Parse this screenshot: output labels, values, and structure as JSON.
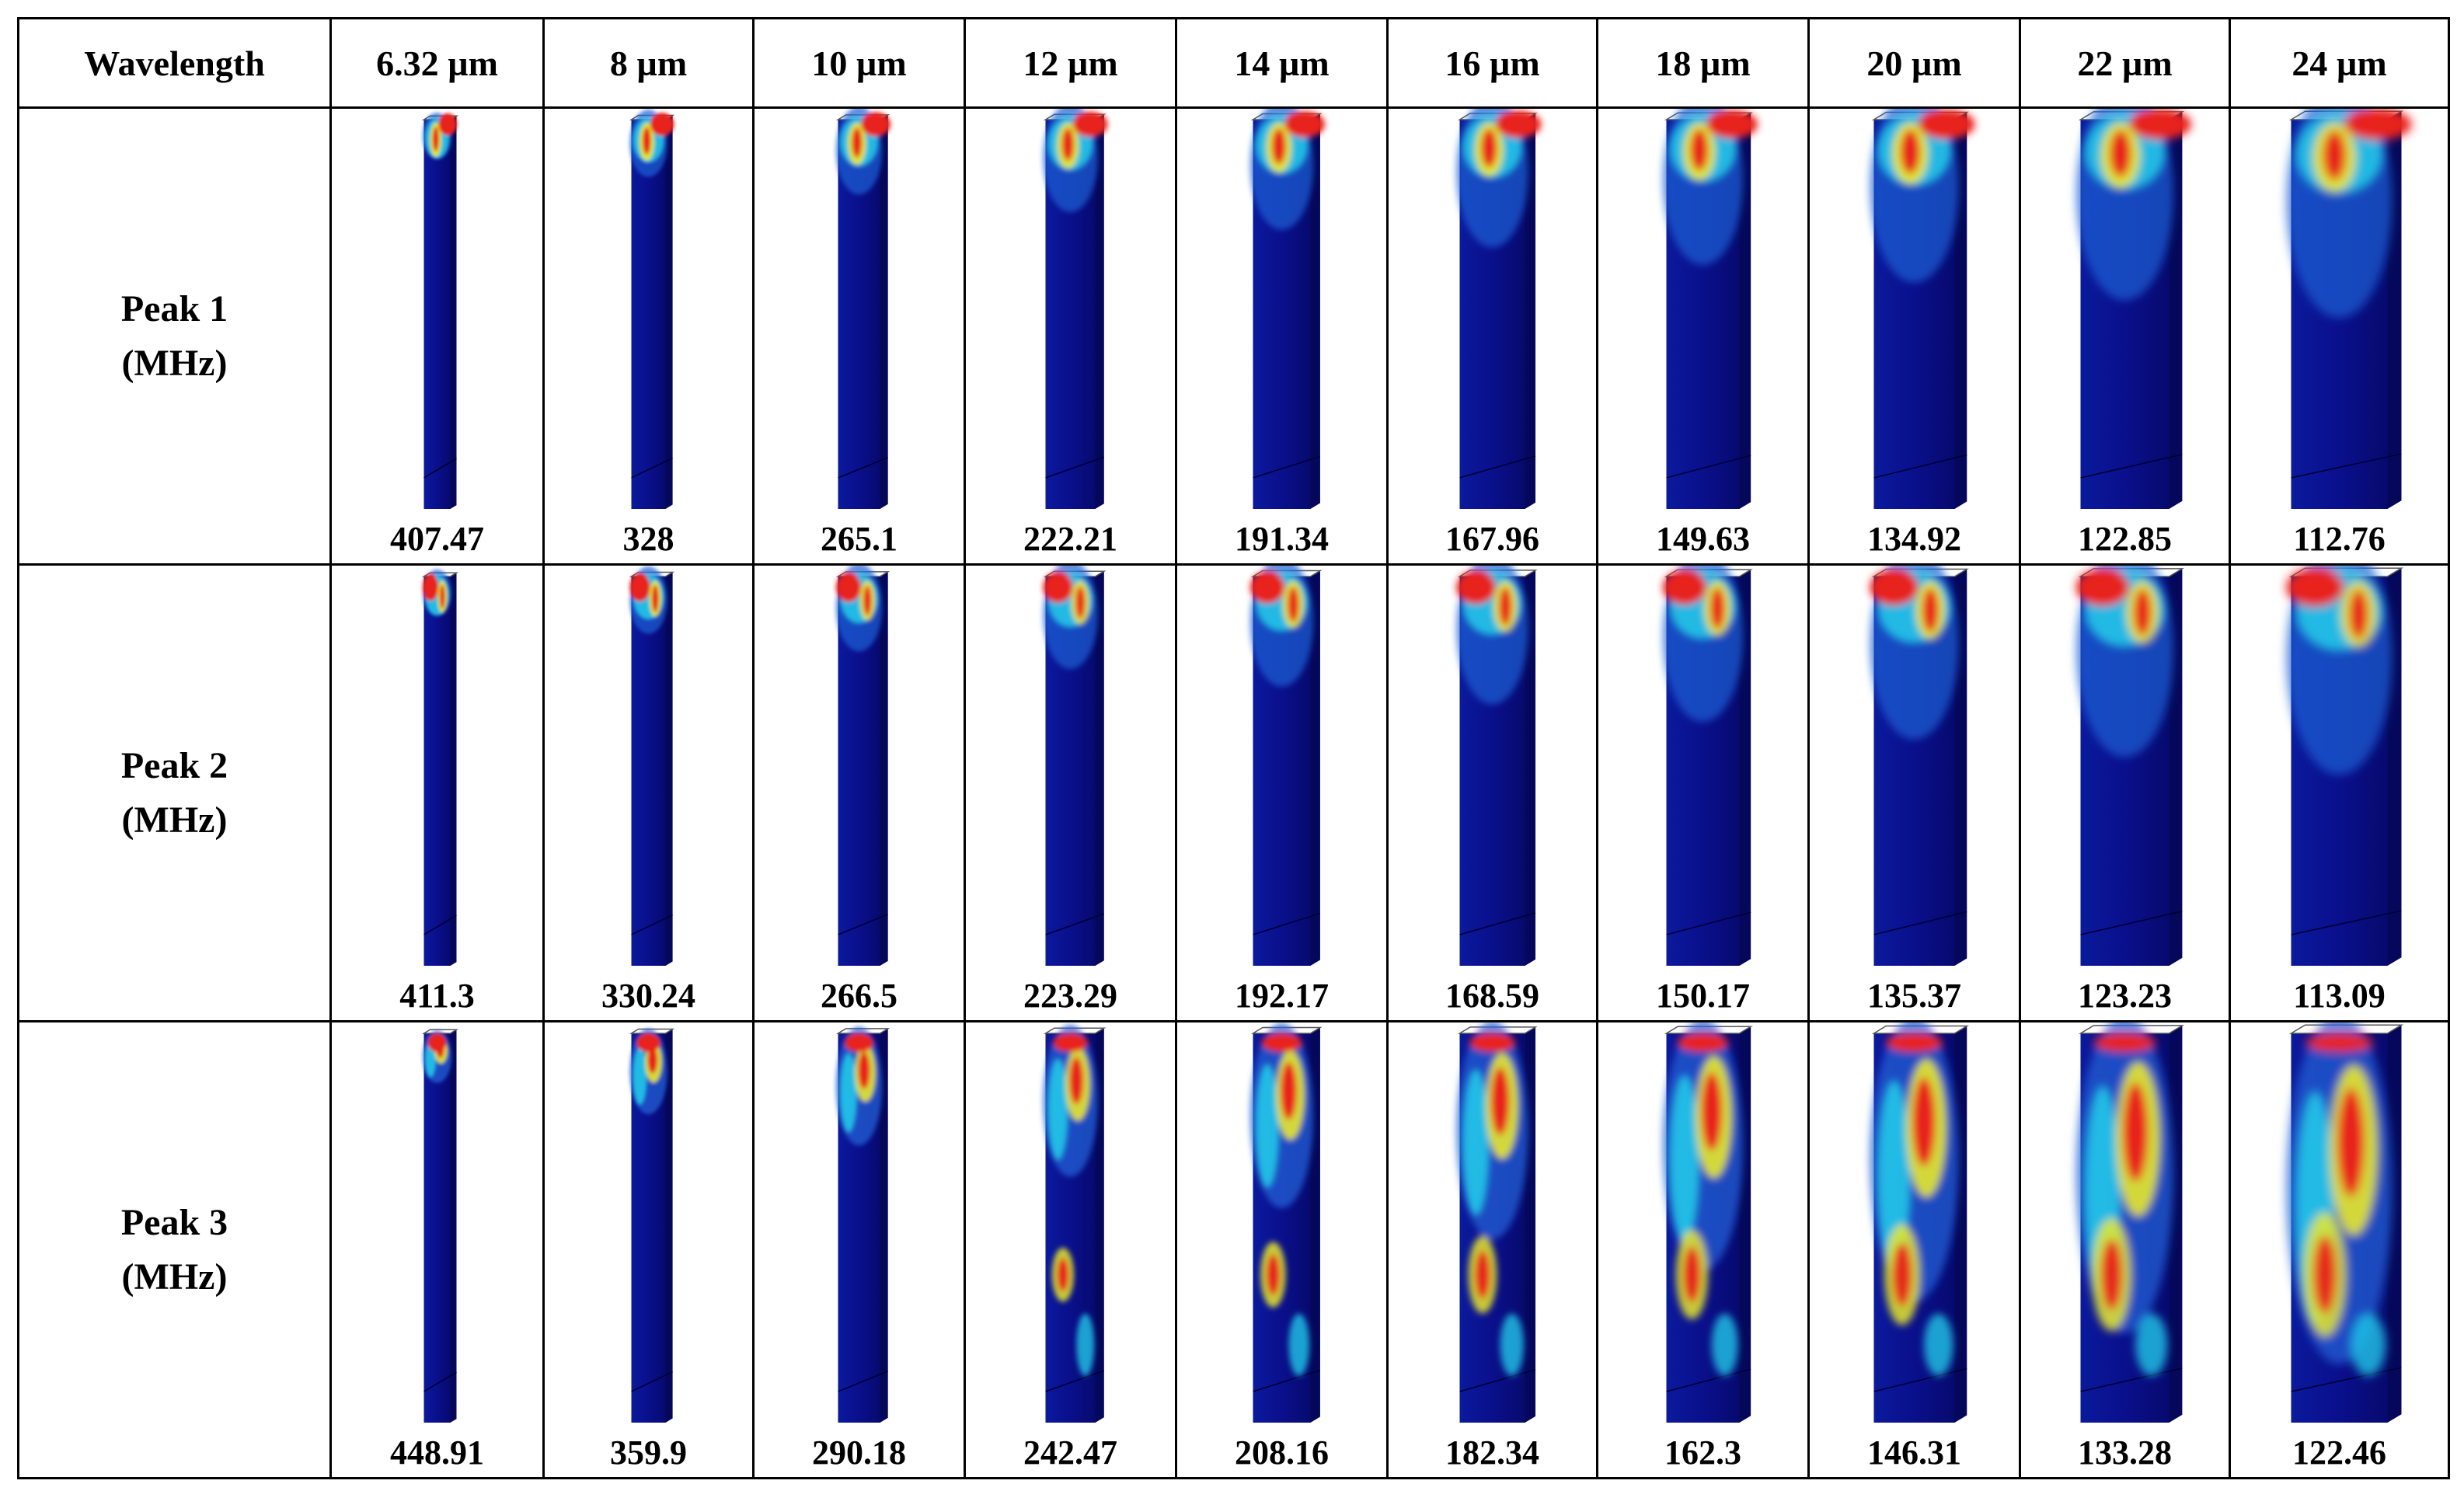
{
  "header": {
    "corner": "Wavelength",
    "wavelengths": [
      "6.32 µm",
      "8 µm",
      "10 µm",
      "12 µm",
      "14 µm",
      "16 µm",
      "18 µm",
      "20 µm",
      "22 µm",
      "24 µm"
    ]
  },
  "rows": [
    {
      "label_line1": "Peak 1",
      "label_line2": "(MHz)",
      "mode": "peak1",
      "values": [
        "407.47",
        "328",
        "265.1",
        "222.21",
        "191.34",
        "167.96",
        "149.63",
        "134.92",
        "122.85",
        "112.76"
      ]
    },
    {
      "label_line1": "Peak 2",
      "label_line2": "(MHz)",
      "mode": "peak2",
      "values": [
        "411.3",
        "330.24",
        "266.5",
        "223.29",
        "192.17",
        "168.59",
        "150.17",
        "135.37",
        "123.23",
        "113.09"
      ]
    },
    {
      "label_line1": "Peak 3",
      "label_line2": "(MHz)",
      "mode": "peak3",
      "values": [
        "448.91",
        "359.9",
        "290.18",
        "242.47",
        "208.16",
        "182.34",
        "162.3",
        "146.31",
        "133.28",
        "122.46"
      ]
    }
  ],
  "colormap": {
    "low": "#0a0f8c",
    "mid_low": "#1f5fd6",
    "mid": "#21c7e8",
    "mid_high": "#e8e82a",
    "high": "#e8201a",
    "outline": "#555555"
  }
}
